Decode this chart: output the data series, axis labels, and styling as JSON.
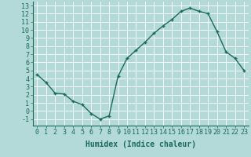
{
  "x": [
    0,
    1,
    2,
    3,
    4,
    5,
    6,
    7,
    8,
    9,
    10,
    11,
    12,
    13,
    14,
    15,
    16,
    17,
    18,
    19,
    20,
    21,
    22,
    23
  ],
  "y": [
    4.5,
    3.5,
    2.2,
    2.1,
    1.2,
    0.8,
    -0.3,
    -1.0,
    -0.6,
    4.3,
    6.5,
    7.5,
    8.5,
    9.6,
    10.5,
    11.3,
    12.3,
    12.7,
    12.3,
    12.0,
    9.8,
    7.3,
    6.5,
    5.0
  ],
  "line_color": "#1a6b5a",
  "marker": "+",
  "bg_color": "#b3d9d9",
  "grid_color": "#ffffff",
  "xlabel": "Humidex (Indice chaleur)",
  "ylim": [
    -1.8,
    13.5
  ],
  "xlim": [
    -0.5,
    23.5
  ],
  "yticks": [
    -1,
    0,
    1,
    2,
    3,
    4,
    5,
    6,
    7,
    8,
    9,
    10,
    11,
    12,
    13
  ],
  "xticks": [
    0,
    1,
    2,
    3,
    4,
    5,
    6,
    7,
    8,
    9,
    10,
    11,
    12,
    13,
    14,
    15,
    16,
    17,
    18,
    19,
    20,
    21,
    22,
    23
  ],
  "xlabel_fontsize": 7,
  "tick_fontsize": 6,
  "linewidth": 1.0,
  "markersize": 3.5,
  "marker_ew": 1.0
}
